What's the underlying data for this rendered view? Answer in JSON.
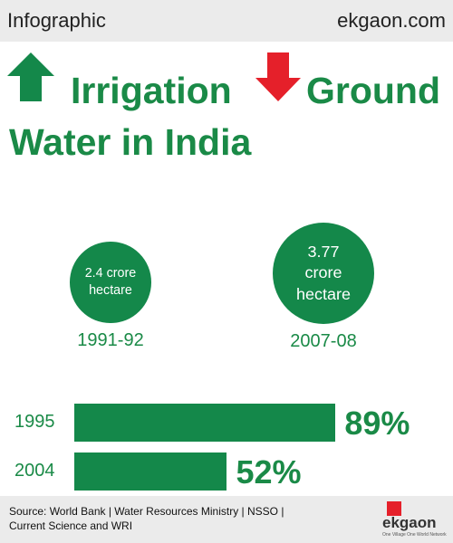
{
  "header": {
    "left": "Infographic",
    "right": "ekgaon.com"
  },
  "title": {
    "part1": "Irrigation",
    "part2": "Ground",
    "part3": "Water in India"
  },
  "chart_data": [
    {
      "type": "bubble",
      "categories": [
        "1991-92",
        "2007-08"
      ],
      "values": [
        2.4,
        3.77
      ],
      "value_labels": [
        "2.4 crore hectare",
        "3.77 crore hectare"
      ],
      "color": "#14884a"
    },
    {
      "type": "bar",
      "categories": [
        "1995",
        "2004"
      ],
      "values": [
        89,
        52
      ],
      "value_labels": [
        "89%",
        "52%"
      ],
      "color": "#14884a",
      "xlim": [
        0,
        100
      ]
    }
  ],
  "source": "Source: World Bank | Water Resources Ministry | NSSO | Current Science and WRI",
  "logo": {
    "name": "ekgaon",
    "tagline": "One Village One World Network"
  }
}
